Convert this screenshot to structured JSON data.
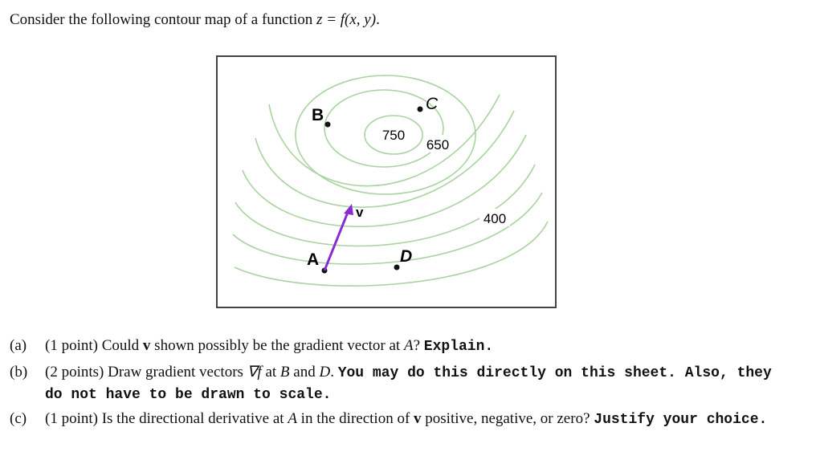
{
  "intro": {
    "text": "Consider the following contour map of a function ",
    "math": "z = f(x, y)",
    "end": "."
  },
  "figure": {
    "labels": {
      "B": "B",
      "C": "C",
      "level_750": "750",
      "level_650": "650",
      "level_400": "400",
      "v": "v",
      "A": "A",
      "D": "D"
    }
  },
  "questions": [
    {
      "label": "(a)",
      "parts": [
        "(1 point) Could ",
        "v",
        " shown possibly be the gradient vector at ",
        "A",
        "? ",
        "Explain."
      ]
    },
    {
      "label": "(b)",
      "parts": [
        "(2 points) Draw gradient vectors ",
        "∇f",
        " at ",
        "B",
        " and ",
        "D",
        ". ",
        "You may do this directly on this sheet. Also, they do not have to be drawn to scale."
      ]
    },
    {
      "label": "(c)",
      "parts": [
        "(1 point) Is the directional derivative at ",
        "A",
        " in the direction of ",
        "v",
        " positive, negative, or zero? ",
        "Justify your choice."
      ]
    }
  ]
}
